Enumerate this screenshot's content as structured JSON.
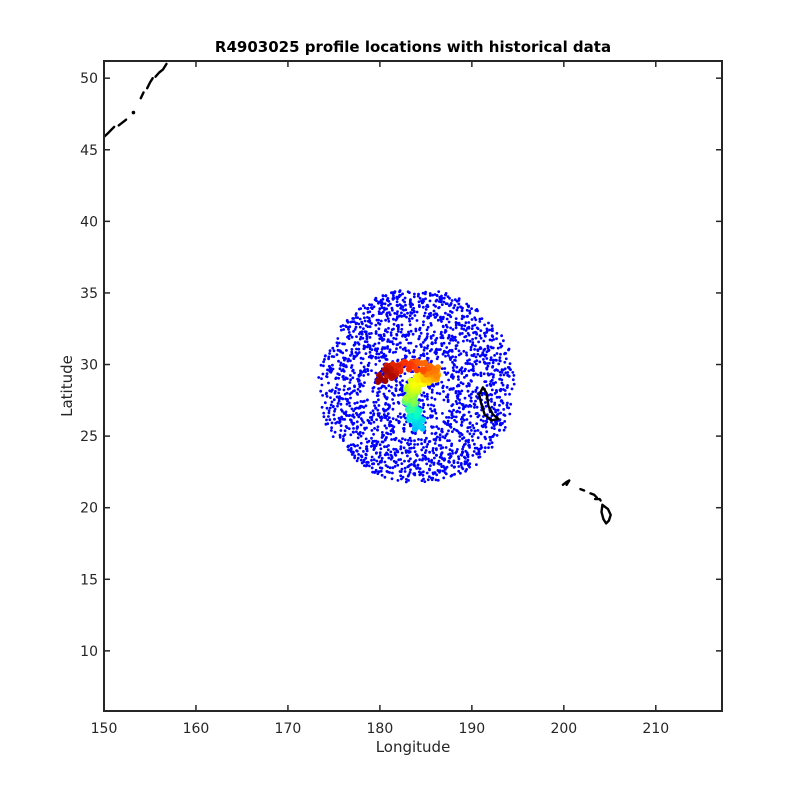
{
  "chart_data": {
    "type": "scatter",
    "title": "R4903025 profile locations with historical data",
    "xlabel": "Longitude",
    "ylabel": "Latitude",
    "xlim": [
      150,
      217.2
    ],
    "ylim": [
      5.8,
      51.2
    ],
    "xticks": [
      150,
      160,
      170,
      180,
      190,
      200,
      210
    ],
    "yticks": [
      10,
      15,
      20,
      25,
      30,
      35,
      40,
      45,
      50
    ],
    "grid": false,
    "legend": "none",
    "colors": {
      "historical": "#0000ff",
      "coastline": "#000000",
      "profile_colormap": [
        "#00bfff",
        "#00ffcc",
        "#99ff33",
        "#ffff00",
        "#ff9900",
        "#ff3300",
        "#990000"
      ]
    },
    "historical_cluster": {
      "center": [
        184.0,
        28.5
      ],
      "lon_range": [
        173.0,
        195.0
      ],
      "lat_range": [
        21.5,
        35.4
      ],
      "point_count": 2200
    },
    "profile_track": [
      [
        184.3,
        25.8
      ],
      [
        184.0,
        26.3
      ],
      [
        183.5,
        26.8
      ],
      [
        183.2,
        27.3
      ],
      [
        183.3,
        27.9
      ],
      [
        183.6,
        28.4
      ],
      [
        184.2,
        28.9
      ],
      [
        185.2,
        29.2
      ],
      [
        186.2,
        29.4
      ],
      [
        185.0,
        29.8
      ],
      [
        183.0,
        30.0
      ],
      [
        181.3,
        29.6
      ],
      [
        180.2,
        29.1
      ]
    ],
    "coastlines": [
      [
        [
          150.0,
          45.9
        ],
        [
          150.5,
          46.2
        ],
        [
          151.1,
          46.6
        ]
      ],
      [
        [
          151.6,
          46.7
        ],
        [
          152.0,
          46.9
        ],
        [
          152.4,
          47.1
        ]
      ],
      [
        [
          153.2,
          47.6
        ]
      ],
      [
        [
          154.0,
          48.6
        ],
        [
          154.3,
          49.0
        ]
      ],
      [
        [
          154.7,
          49.3
        ],
        [
          155.0,
          49.7
        ],
        [
          155.3,
          50.0
        ]
      ],
      [
        [
          155.6,
          50.1
        ],
        [
          156.0,
          50.4
        ],
        [
          156.4,
          50.6
        ],
        [
          156.8,
          51.0
        ]
      ],
      [
        [
          199.9,
          21.6
        ],
        [
          200.3,
          21.8
        ],
        [
          200.6,
          21.9
        ],
        [
          200.3,
          21.6
        ]
      ],
      [
        [
          201.8,
          21.3
        ],
        [
          202.2,
          21.2
        ]
      ],
      [
        [
          202.9,
          21.0
        ],
        [
          203.3,
          20.9
        ],
        [
          203.6,
          20.7
        ]
      ],
      [
        [
          203.4,
          20.6
        ],
        [
          203.9,
          20.6
        ],
        [
          204.0,
          20.5
        ]
      ],
      [
        [
          204.2,
          20.2
        ],
        [
          204.8,
          19.9
        ],
        [
          205.1,
          19.5
        ],
        [
          204.9,
          19.1
        ],
        [
          204.6,
          18.9
        ],
        [
          204.3,
          19.2
        ],
        [
          204.1,
          19.7
        ],
        [
          204.2,
          20.2
        ]
      ],
      [
        [
          191.4,
          26.5
        ],
        [
          191.0,
          27.3
        ],
        [
          190.8,
          27.9
        ],
        [
          191.2,
          28.4
        ],
        [
          191.6,
          28.0
        ],
        [
          191.8,
          27.1
        ],
        [
          192.3,
          26.5
        ],
        [
          192.9,
          26.2
        ],
        [
          192.1,
          26.1
        ],
        [
          191.4,
          26.5
        ]
      ]
    ]
  }
}
